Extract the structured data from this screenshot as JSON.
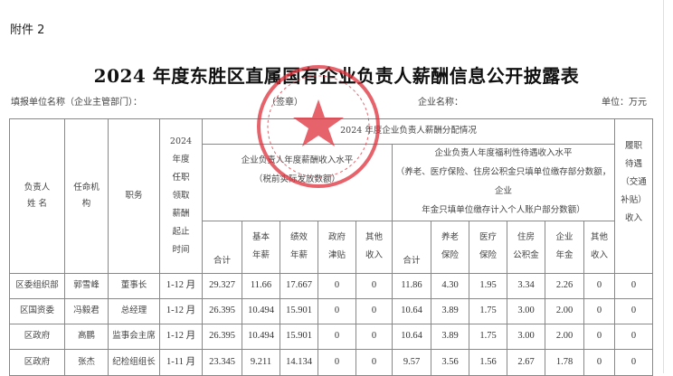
{
  "attachment_label": "附件 2",
  "title": "2024 年度东胜区直属国有企业负责人薪酬信息公开披露表",
  "meta": {
    "reporting_unit": "填报单位名称（企业主管部门）：",
    "seal_note": "（签章）",
    "company_name": "企业名称：",
    "unit": "单位：万元"
  },
  "seal_color": "#e0303a",
  "headers": {
    "name": "负责人\n姓 名",
    "appointing_body": "任命机\n构",
    "position": "职务",
    "period": "2024\n年度\n任职\n领取\n薪酬\n起止\n时间",
    "group": "2024 年度企业负责人薪酬分配情况",
    "salary_group": "企业负责人年度薪酬收入水平\n（税前实际发放数额）",
    "welfare_group": "企业负责人年度福利性待遇收入水平\n（养老、医疗保险、住房公积金只填单位缴存部分数额，企业\n年金只填单位缴存计入个人账户部分数额）",
    "duty": "履职\n待遇\n（交通\n补贴）\n收入",
    "salary_cols": [
      "合计",
      "基本\n年薪",
      "绩效\n年薪",
      "政府\n津贴",
      "其他\n收入"
    ],
    "welfare_cols": [
      "合计",
      "养老\n保险",
      "医疗\n保险",
      "住房\n公积金",
      "企业\n年金",
      "其他\n收入"
    ]
  },
  "rows": [
    [
      "区委组织部",
      "郭雪峰",
      "董事长",
      "1-12 月",
      "29.327",
      "11.66",
      "17.667",
      "0",
      "0",
      "11.86",
      "4.30",
      "1.95",
      "3.34",
      "2.26",
      "0",
      "0"
    ],
    [
      "区国资委",
      "冯毅君",
      "总经理",
      "1-12 月",
      "26.395",
      "10.494",
      "15.901",
      "0",
      "0",
      "10.64",
      "3.89",
      "1.75",
      "3.00",
      "2.00",
      "0",
      "0"
    ],
    [
      "区政府",
      "高鹏",
      "监事会主席",
      "1-12 月",
      "26.395",
      "10.494",
      "15.901",
      "0",
      "0",
      "10.64",
      "3.89",
      "1.75",
      "3.00",
      "2.00",
      "0",
      "0"
    ],
    [
      "区政府",
      "张杰",
      "纪检组组长",
      "1-11 月",
      "23.345",
      "9.211",
      "14.134",
      "0",
      "0",
      "9.57",
      "3.56",
      "1.56",
      "2.67",
      "1.78",
      "0",
      "0"
    ]
  ]
}
